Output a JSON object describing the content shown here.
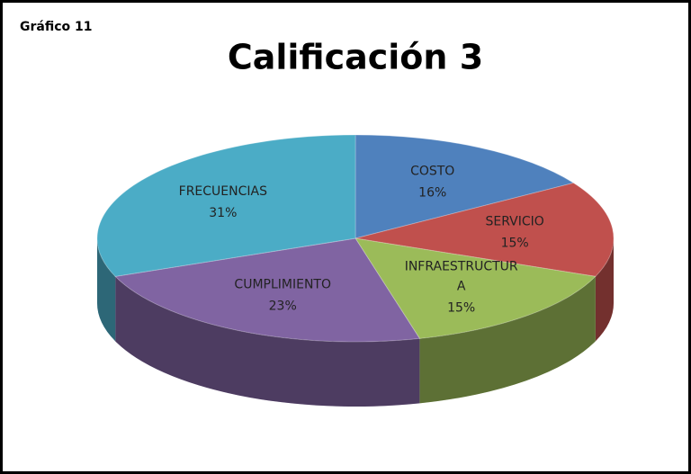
{
  "chart_data": {
    "type": "pie",
    "label": "Gráfico 11",
    "title": "Calificación 3",
    "categories": [
      "COSTO",
      "SERVICIO",
      "INFRAESTRUCTURA",
      "CUMPLIMIENTO",
      "FRECUENCIAS"
    ],
    "values": [
      16,
      15,
      15,
      23,
      31
    ],
    "value_labels": [
      "16%",
      "15%",
      "15%",
      "23%",
      "31%"
    ],
    "colors": [
      "#4f81bd",
      "#c0504d",
      "#9bbb59",
      "#8064a2",
      "#4bacc6"
    ]
  }
}
